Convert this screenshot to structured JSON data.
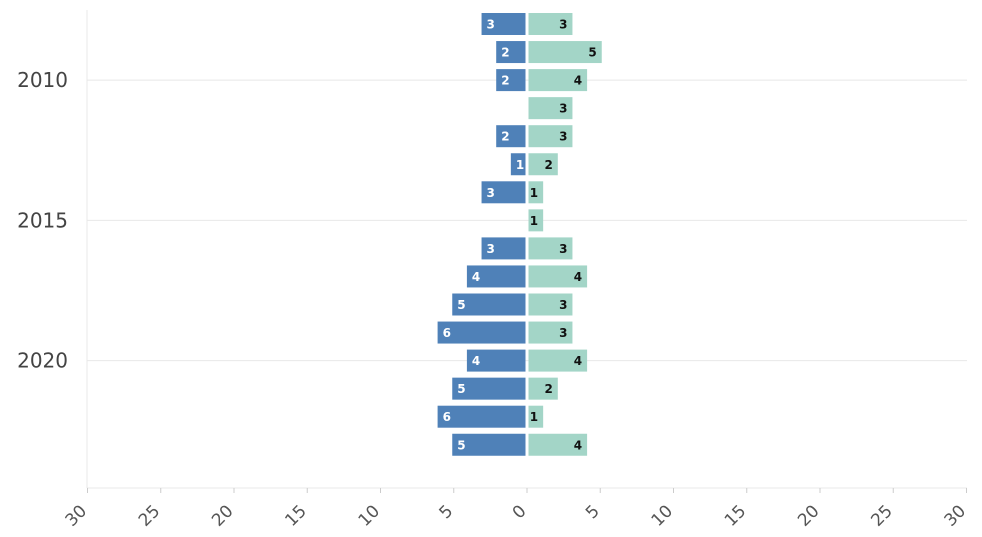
{
  "colors": {
    "left_bar": "#4f81b8",
    "right_bar": "#a3d5c7",
    "left_label": "#ffffff",
    "right_label": "#111111",
    "grid": "#e8e8e8",
    "axis_text": "#555555"
  },
  "chart_data": {
    "type": "bar",
    "orientation": "horizontal-diverging",
    "y_tick_labels": [
      "2010",
      "2015",
      "2020"
    ],
    "x_tick_labels": [
      "30",
      "25",
      "20",
      "15",
      "10",
      "5",
      "0",
      "5",
      "10",
      "15",
      "20",
      "25",
      "30"
    ],
    "xlim": [
      -30,
      30
    ],
    "grid": true,
    "rows": [
      {
        "left": 3,
        "right": 3
      },
      {
        "left": 2,
        "right": 5
      },
      {
        "left": 2,
        "right": 4
      },
      {
        "left": 0,
        "right": 3
      },
      {
        "left": 2,
        "right": 3
      },
      {
        "left": 1,
        "right": 2
      },
      {
        "left": 3,
        "right": 1
      },
      {
        "left": 0,
        "right": 1
      },
      {
        "left": 3,
        "right": 3
      },
      {
        "left": 4,
        "right": 4
      },
      {
        "left": 5,
        "right": 3
      },
      {
        "left": 6,
        "right": 3
      },
      {
        "left": 4,
        "right": 4
      },
      {
        "left": 5,
        "right": 2
      },
      {
        "left": 6,
        "right": 1
      },
      {
        "left": 5,
        "right": 4
      }
    ],
    "y_tick_rows": [
      2,
      7,
      12
    ]
  }
}
